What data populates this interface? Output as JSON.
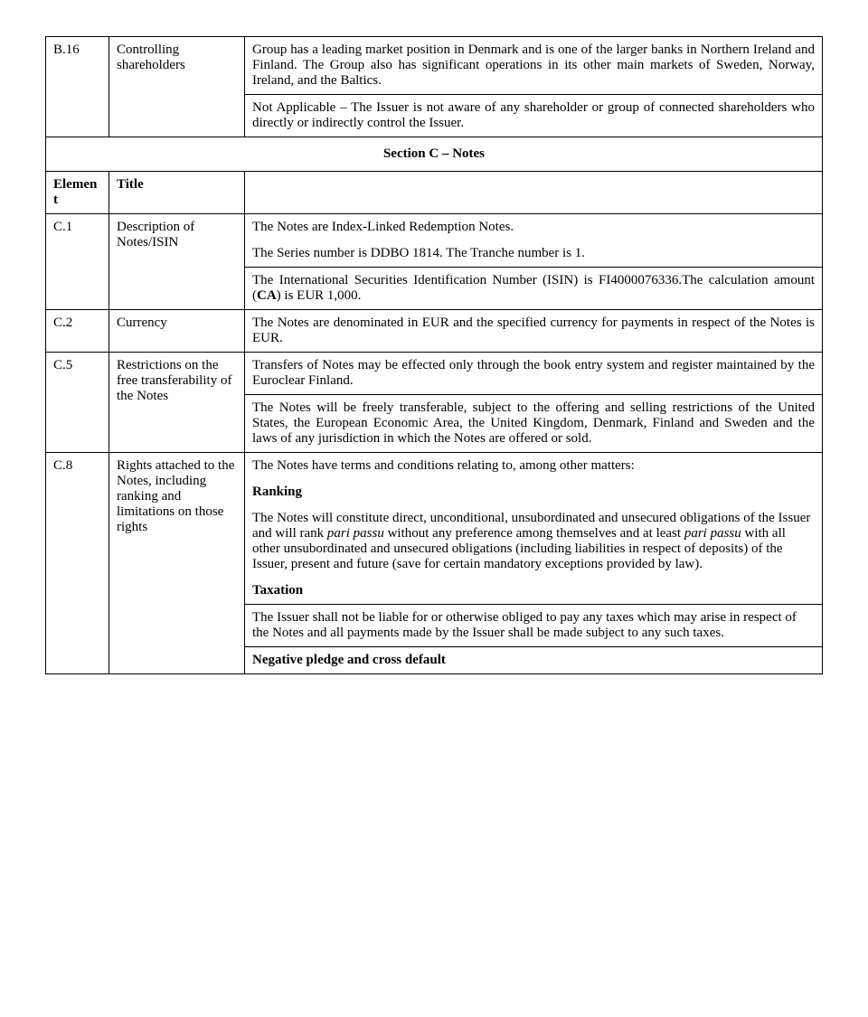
{
  "rows": {
    "b16": {
      "element": "B.16",
      "title": "Controlling shareholders",
      "p1": "Group has a leading market position in Denmark and is one of the larger banks in Northern Ireland and Finland. The Group also has significant operations in its other main markets of Sweden, Norway, Ireland, and the Baltics.",
      "p2": "Not Applicable – The Issuer is not aware of any shareholder or group of connected shareholders who directly or indirectly control the Issuer."
    },
    "section_c": "Section C – Notes",
    "header_element": "Element",
    "header_title": "Title",
    "c1": {
      "element": "C.1",
      "title": "Description of Notes/ISIN",
      "p1": "The Notes are Index-Linked Redemption Notes.",
      "p2": "The Series number is DDBO 1814. The Tranche number is 1.",
      "p3a": "The International Securities Identification Number (ISIN) is FI4000076336.The calculation amount (",
      "p3b": "CA",
      "p3c": ") is EUR 1,000."
    },
    "c2": {
      "element": "C.2",
      "title": "Currency",
      "p1": "The Notes are denominated in EUR and the specified currency for payments in respect of the Notes is EUR."
    },
    "c5": {
      "element": "C.5",
      "title": "Restrictions on the free transferability of the Notes",
      "p1": "Transfers of Notes may be effected only through the book entry system and register maintained by the Euroclear Finland.",
      "p2": "The Notes will be freely transferable, subject to the offering and selling restrictions of the United States, the European Economic Area, the United Kingdom, Denmark, Finland and Sweden and the laws of any jurisdiction in which the Notes are offered or sold."
    },
    "c8": {
      "element": "C.8",
      "title": "Rights attached to the Notes, including ranking and limitations on those rights",
      "p1": "The Notes have terms and conditions relating to, among other matters:",
      "h1": "Ranking",
      "p2a": "The Notes will constitute direct, unconditional, unsubordinated and unsecured obligations of the Issuer and will rank ",
      "p2b": "pari passu",
      "p2c": " without any preference among themselves and at least ",
      "p2d": "pari passu",
      "p2e": " with all other unsubordinated and unsecured obligations (including liabilities in respect of deposits) of the Issuer, present and future (save for certain mandatory exceptions provided by law).",
      "h2": "Taxation",
      "p3": "The Issuer shall not be liable for or otherwise obliged to pay any taxes which may arise in respect of the Notes and all payments made by the Issuer shall be made subject to any such taxes.",
      "h3": "Negative pledge and cross default"
    }
  }
}
